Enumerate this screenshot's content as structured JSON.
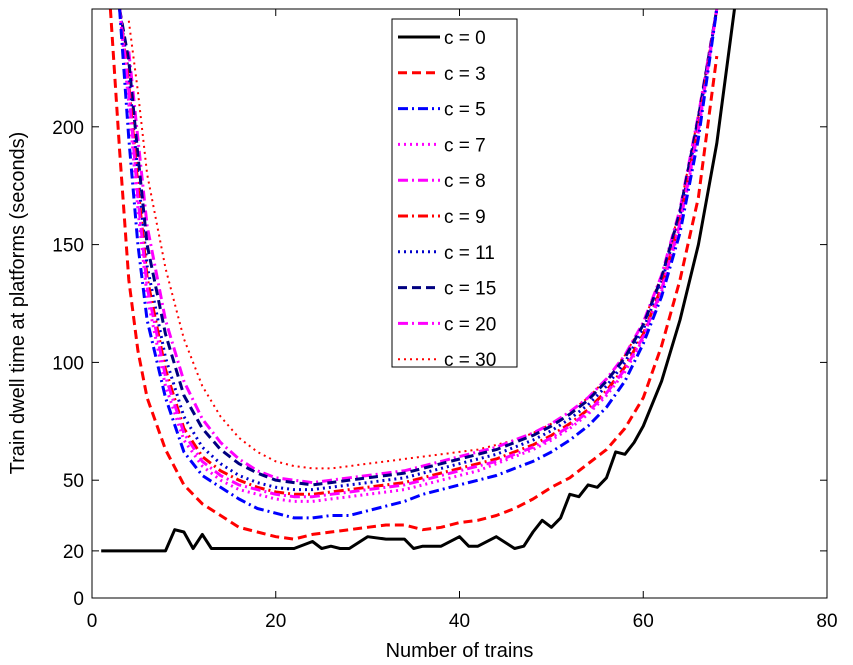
{
  "chart_data": {
    "type": "line",
    "title": "",
    "xlabel": "Number of trains",
    "ylabel": "Train dwell time at platforms (seconds)",
    "xlim": [
      0,
      80
    ],
    "ylim": [
      0,
      250
    ],
    "xticks": [
      0,
      20,
      40,
      60,
      80
    ],
    "xtick_labels": [
      "0",
      "20",
      "40",
      "60",
      "80"
    ],
    "yticks": [
      0,
      20,
      50,
      100,
      150,
      200
    ],
    "ytick_labels": [
      "0",
      "20",
      "50",
      "100",
      "150",
      "200"
    ],
    "grid": false,
    "legend_position": "top-center",
    "series": [
      {
        "name": "c = 0",
        "color": "#000000",
        "style": "solid",
        "width": 3,
        "x": [
          1,
          2,
          4,
          6,
          8,
          9,
          10,
          11,
          12,
          13,
          14,
          16,
          18,
          20,
          22,
          24,
          25,
          26,
          27,
          28,
          30,
          32,
          34,
          35,
          36,
          38,
          40,
          41,
          42,
          44,
          46,
          47,
          48,
          49,
          50,
          51,
          52,
          53,
          54,
          55,
          56,
          57,
          58,
          59,
          60,
          62,
          64,
          66,
          68,
          70
        ],
        "y": [
          20,
          20,
          20,
          20,
          20,
          29,
          28,
          21,
          27,
          21,
          21,
          21,
          21,
          21,
          21,
          24,
          21,
          22,
          21,
          21,
          26,
          25,
          25,
          21,
          22,
          22,
          26,
          22,
          22,
          26,
          21,
          22,
          28,
          33,
          30,
          34,
          44,
          43,
          48,
          47,
          51,
          62,
          61,
          66,
          73,
          92,
          118,
          150,
          193,
          252
        ]
      },
      {
        "name": "c = 3",
        "color": "#ff0000",
        "style": "dashed",
        "width": 3,
        "x": [
          2,
          3,
          4,
          5,
          6,
          8,
          10,
          12,
          14,
          16,
          18,
          20,
          22,
          24,
          26,
          28,
          30,
          32,
          34,
          36,
          38,
          40,
          42,
          44,
          46,
          48,
          50,
          52,
          54,
          56,
          58,
          60,
          62,
          64,
          66,
          68
        ],
        "y": [
          250,
          190,
          135,
          105,
          85,
          63,
          48,
          40,
          35,
          30,
          28,
          26,
          25,
          27,
          28,
          29,
          30,
          31,
          31,
          29,
          30,
          32,
          33,
          35,
          38,
          42,
          47,
          51,
          57,
          63,
          72,
          85,
          107,
          135,
          170,
          230
        ]
      },
      {
        "name": "c = 5",
        "color": "#0000ff",
        "style": "dashdot",
        "width": 3,
        "x": [
          3,
          4,
          5,
          6,
          8,
          10,
          12,
          14,
          16,
          18,
          20,
          22,
          24,
          26,
          28,
          30,
          32,
          34,
          36,
          38,
          40,
          42,
          44,
          46,
          48,
          50,
          52,
          54,
          56,
          58,
          60,
          62,
          64,
          66,
          68
        ],
        "y": [
          250,
          195,
          150,
          118,
          85,
          62,
          52,
          47,
          42,
          38,
          36,
          34,
          34,
          35,
          35,
          37,
          39,
          41,
          44,
          46,
          48,
          50,
          52,
          55,
          58,
          62,
          67,
          73,
          81,
          92,
          108,
          128,
          155,
          195,
          250
        ]
      },
      {
        "name": "c = 7",
        "color": "#ff00ff",
        "style": "dotted",
        "width": 3,
        "x": [
          3,
          4,
          5,
          6,
          8,
          10,
          12,
          14,
          16,
          18,
          20,
          22,
          24,
          26,
          28,
          30,
          32,
          34,
          36,
          38,
          40,
          42,
          44,
          46,
          48,
          50,
          52,
          54,
          56,
          58,
          60,
          62,
          64,
          66,
          68
        ],
        "y": [
          250,
          210,
          165,
          128,
          90,
          67,
          56,
          50,
          46,
          44,
          42,
          41,
          41,
          42,
          43,
          44,
          45,
          46,
          48,
          50,
          52,
          54,
          57,
          60,
          63,
          67,
          72,
          78,
          86,
          96,
          110,
          130,
          158,
          198,
          250
        ]
      },
      {
        "name": "c = 8",
        "color": "#ff00ff",
        "style": "dashdot",
        "width": 3,
        "x": [
          3,
          4,
          5,
          6,
          8,
          10,
          12,
          14,
          16,
          18,
          20,
          22,
          24,
          26,
          28,
          30,
          32,
          34,
          36,
          38,
          40,
          42,
          44,
          46,
          48,
          50,
          52,
          54,
          56,
          58,
          60,
          62,
          64,
          66,
          68
        ],
        "y": [
          250,
          215,
          170,
          132,
          94,
          70,
          58,
          52,
          48,
          46,
          44,
          43,
          43,
          44,
          45,
          46,
          47,
          48,
          50,
          52,
          54,
          56,
          58,
          61,
          64,
          68,
          73,
          79,
          87,
          97,
          111,
          131,
          159,
          199,
          250
        ]
      },
      {
        "name": "c = 9",
        "color": "#ff0000",
        "style": "dashdot",
        "width": 3,
        "x": [
          3,
          4,
          5,
          6,
          8,
          10,
          12,
          14,
          16,
          18,
          20,
          22,
          24,
          26,
          28,
          30,
          32,
          34,
          36,
          38,
          40,
          42,
          44,
          46,
          48,
          50,
          52,
          54,
          56,
          58,
          60,
          62,
          64,
          66,
          68
        ],
        "y": [
          250,
          218,
          175,
          136,
          97,
          72,
          60,
          54,
          50,
          47,
          45,
          44,
          44,
          45,
          46,
          47,
          48,
          49,
          51,
          53,
          55,
          57,
          59,
          62,
          65,
          69,
          74,
          80,
          88,
          98,
          112,
          132,
          160,
          200,
          250
        ]
      },
      {
        "name": "c = 11",
        "color": "#0000cc",
        "style": "dotted",
        "width": 3,
        "x": [
          3,
          4,
          5,
          6,
          8,
          10,
          12,
          14,
          16,
          18,
          20,
          22,
          24,
          26,
          28,
          30,
          32,
          34,
          36,
          38,
          40,
          42,
          44,
          46,
          48,
          50,
          52,
          54,
          56,
          58,
          60,
          62,
          64,
          66,
          68
        ],
        "y": [
          250,
          222,
          180,
          141,
          102,
          77,
          64,
          57,
          52,
          49,
          47,
          46,
          46,
          47,
          48,
          49,
          50,
          51,
          53,
          55,
          57,
          59,
          61,
          64,
          67,
          71,
          76,
          82,
          90,
          100,
          114,
          134,
          162,
          202,
          250
        ]
      },
      {
        "name": "c = 15",
        "color": "#000080",
        "style": "dashed",
        "width": 3,
        "x": [
          3,
          4,
          5,
          6,
          8,
          10,
          12,
          14,
          16,
          18,
          20,
          22,
          24,
          26,
          28,
          30,
          32,
          34,
          36,
          38,
          40,
          42,
          44,
          46,
          48,
          50,
          52,
          54,
          56,
          58,
          60,
          62,
          64,
          66,
          68
        ],
        "y": [
          250,
          228,
          188,
          150,
          112,
          86,
          72,
          63,
          57,
          53,
          50,
          49,
          48,
          49,
          50,
          51,
          52,
          53,
          55,
          57,
          59,
          61,
          63,
          66,
          69,
          73,
          78,
          84,
          92,
          102,
          116,
          136,
          164,
          204,
          250
        ]
      },
      {
        "name": "c = 20",
        "color": "#ff00ff",
        "style": "dashdot",
        "width": 3,
        "x": [
          4,
          5,
          6,
          8,
          10,
          12,
          14,
          16,
          18,
          20,
          22,
          24,
          26,
          28,
          30,
          32,
          34,
          36,
          38,
          40,
          42,
          44,
          46,
          48,
          50,
          52,
          54,
          56,
          58,
          60,
          62,
          64,
          66,
          68
        ],
        "y": [
          232,
          195,
          158,
          118,
          92,
          76,
          66,
          59,
          54,
          51,
          50,
          49,
          50,
          51,
          52,
          53,
          54,
          56,
          58,
          60,
          62,
          64,
          67,
          70,
          74,
          79,
          85,
          93,
          103,
          117,
          137,
          165,
          205,
          250
        ]
      },
      {
        "name": "c = 30",
        "color": "#ff0000",
        "style": "dotted",
        "width": 2,
        "x": [
          4,
          5,
          6,
          8,
          10,
          12,
          14,
          16,
          18,
          20,
          22,
          24,
          26,
          28,
          30,
          32,
          34,
          36,
          38,
          40,
          42,
          44,
          46,
          48,
          50,
          52,
          54,
          56,
          58,
          60,
          62,
          64,
          66,
          68
        ],
        "y": [
          245,
          215,
          180,
          140,
          110,
          90,
          77,
          68,
          62,
          58,
          56,
          55,
          55,
          56,
          57,
          58,
          59,
          60,
          61,
          62,
          63,
          65,
          67,
          70,
          74,
          79,
          85,
          93,
          103,
          117,
          137,
          165,
          205,
          250
        ]
      }
    ]
  }
}
